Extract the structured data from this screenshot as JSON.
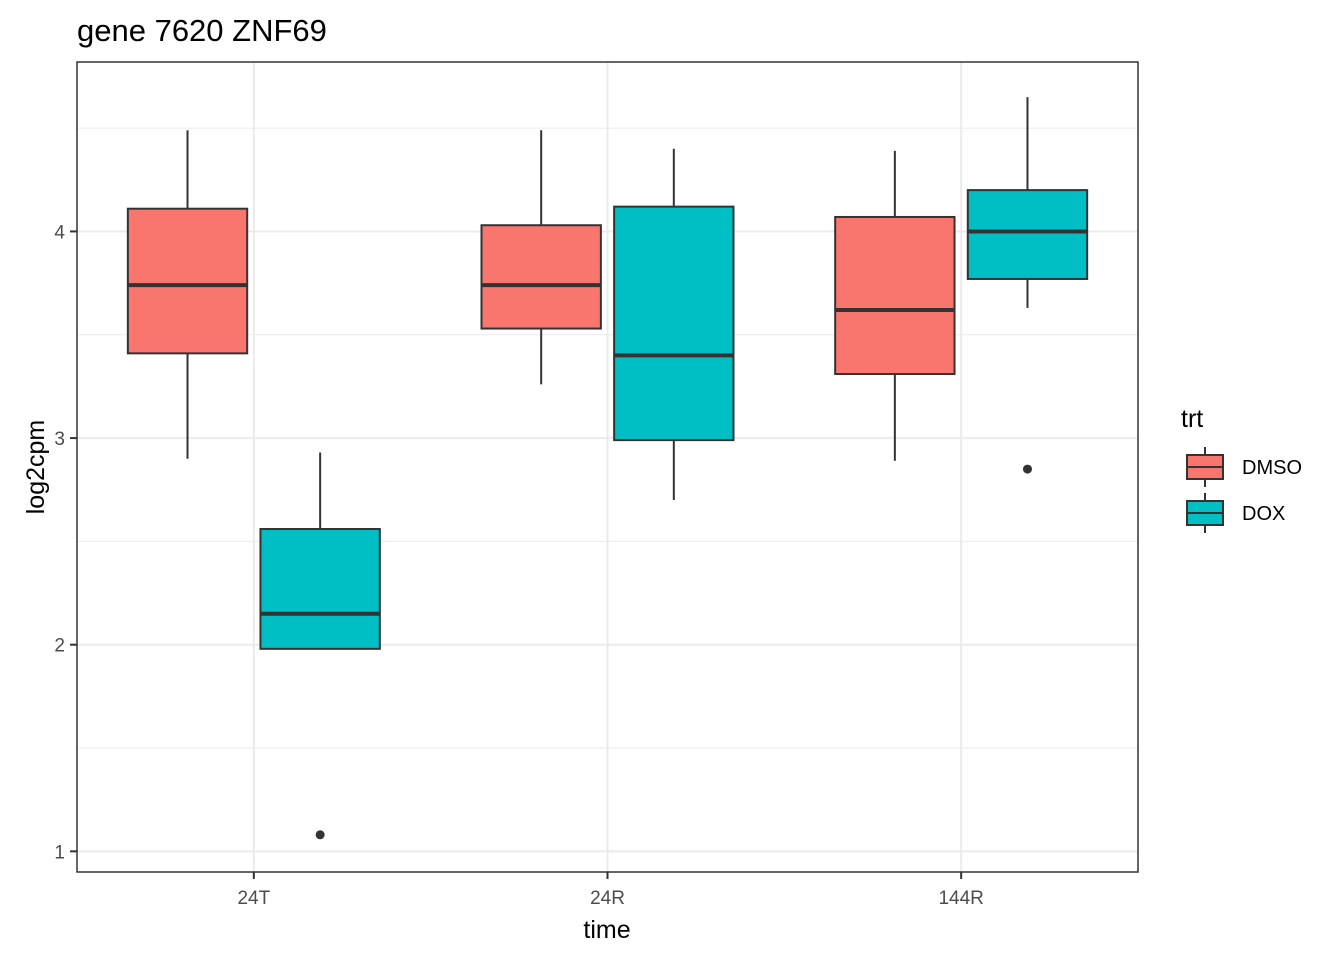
{
  "chart_data": {
    "type": "boxplot",
    "title": "gene 7620 ZNF69",
    "xlabel": "time",
    "ylabel": "log2cpm",
    "categories": [
      "24T",
      "24R",
      "144R"
    ],
    "ylim": [
      0.9,
      4.82
    ],
    "yticks": [
      1,
      2,
      3,
      4
    ],
    "grid": true,
    "legend": {
      "title": "trt",
      "position": "right",
      "entries": [
        {
          "name": "DMSO",
          "color": "#F8766D"
        },
        {
          "name": "DOX",
          "color": "#00BFC4"
        }
      ]
    },
    "series": [
      {
        "name": "DMSO",
        "color": "#F8766D",
        "boxes": [
          {
            "category": "24T",
            "whisker_low": 2.9,
            "q1": 3.41,
            "median": 3.74,
            "q3": 4.11,
            "whisker_high": 4.49,
            "outliers": []
          },
          {
            "category": "24R",
            "whisker_low": 3.26,
            "q1": 3.53,
            "median": 3.74,
            "q3": 4.03,
            "whisker_high": 4.49,
            "outliers": []
          },
          {
            "category": "144R",
            "whisker_low": 2.89,
            "q1": 3.31,
            "median": 3.62,
            "q3": 4.07,
            "whisker_high": 4.39,
            "outliers": []
          }
        ]
      },
      {
        "name": "DOX",
        "color": "#00BFC4",
        "boxes": [
          {
            "category": "24T",
            "whisker_low": 1.98,
            "q1": 1.98,
            "median": 2.15,
            "q3": 2.56,
            "whisker_high": 2.93,
            "outliers": [
              1.08
            ]
          },
          {
            "category": "24R",
            "whisker_low": 2.7,
            "q1": 2.99,
            "median": 3.4,
            "q3": 4.12,
            "whisker_high": 4.4,
            "outliers": []
          },
          {
            "category": "144R",
            "whisker_low": 3.63,
            "q1": 3.77,
            "median": 4.0,
            "q3": 4.2,
            "whisker_high": 4.65,
            "outliers": [
              2.85
            ]
          }
        ]
      }
    ]
  }
}
